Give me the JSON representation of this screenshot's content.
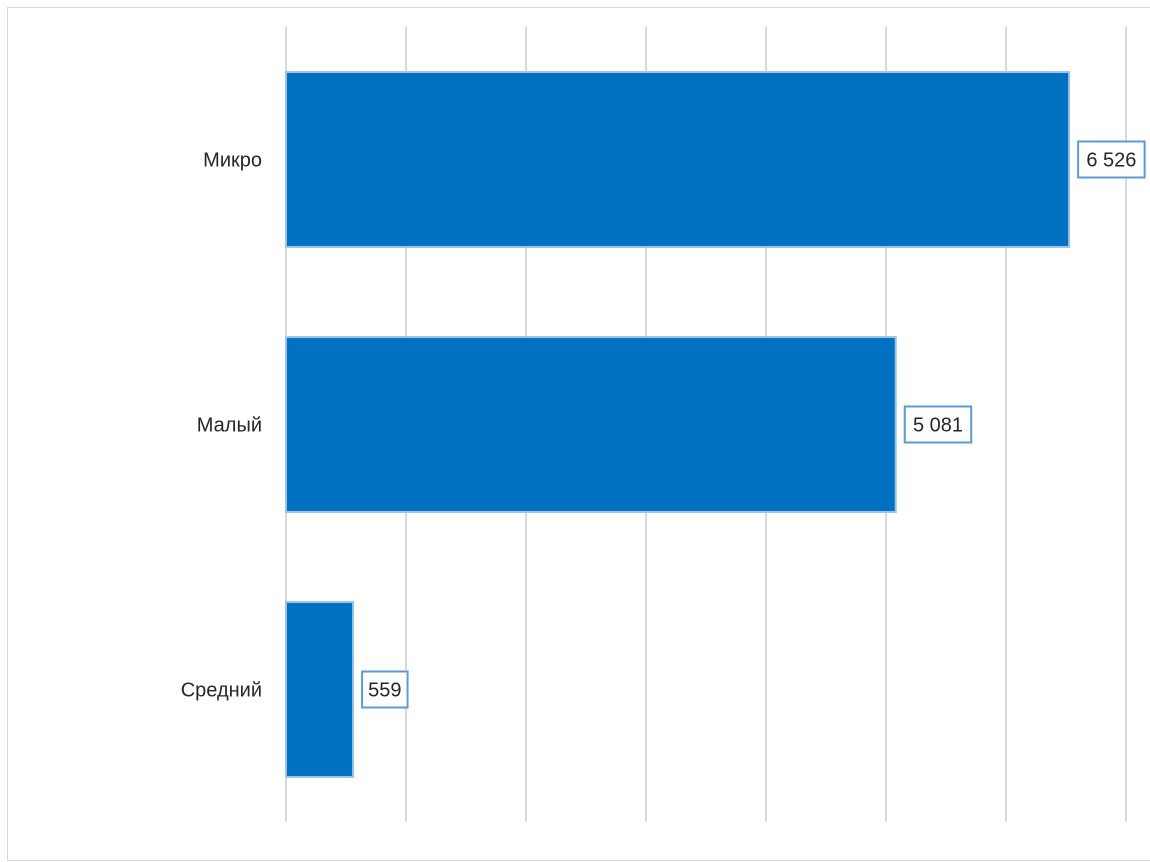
{
  "chart_data": {
    "type": "bar",
    "orientation": "horizontal",
    "categories": [
      "Микро",
      "Малый",
      "Средний"
    ],
    "values": [
      6526,
      5081,
      559
    ],
    "data_labels": [
      "6 526",
      "5 081",
      "559"
    ],
    "xlim": [
      0,
      7000
    ],
    "x_gridline_step": 1000,
    "grid": true,
    "legend": "none",
    "bar_color": "#0070C0",
    "bar_border_color": "#9DC3E6",
    "label_border_color": "#5B9BD5",
    "gridline_color": "#D9D9D9"
  }
}
